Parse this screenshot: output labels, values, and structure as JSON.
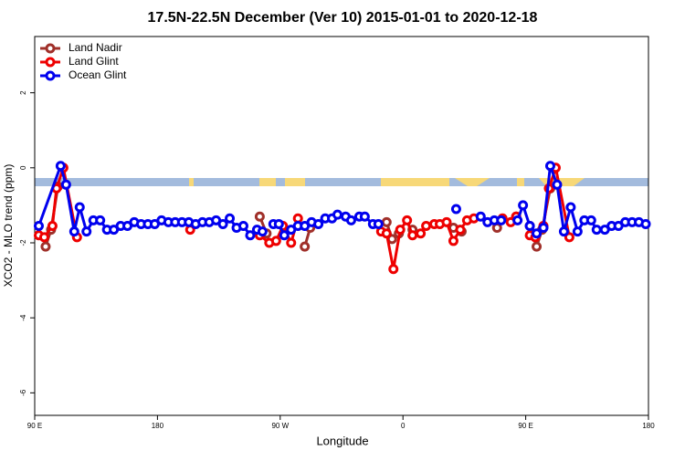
{
  "chart_data": {
    "type": "line",
    "title": "17.5N-22.5N December (Ver 10)   2015-01-01 to 2020-12-18",
    "xlabel": "Longitude",
    "ylabel": "XCO2 - MLO trend (ppm)",
    "xlim": [
      90,
      540
    ],
    "ylim": [
      -6.6,
      3.5
    ],
    "xticks": [
      {
        "value": 90,
        "label": "90 E"
      },
      180,
      {
        "value": 270,
        "label": "90 W"
      },
      {
        "value": 360,
        "label": "0"
      },
      {
        "value": 450,
        "label": "90 E"
      },
      {
        "value": 540,
        "label": "180"
      }
    ],
    "yticks": [
      -6,
      -4,
      -2,
      0,
      2
    ],
    "legend": "top-left",
    "series": [
      {
        "name": "Land Nadir",
        "color": "#a0302a",
        "x": [
          98,
          102,
          107,
          null,
          255,
          260,
          null,
          288,
          292,
          null,
          348,
          352,
          357,
          null,
          367,
          null,
          397,
          null,
          403,
          null,
          429,
          null,
          443,
          null,
          453,
          458,
          462,
          468
        ],
        "values": [
          -2.1,
          -1.65,
          -0.5,
          null,
          -1.3,
          -1.75,
          null,
          -2.1,
          -1.6,
          null,
          -1.45,
          -1.9,
          -1.75,
          null,
          -1.65,
          null,
          -1.6,
          null,
          -1.7,
          null,
          -1.6,
          null,
          -1.3,
          null,
          -1.55,
          -2.1,
          -1.65,
          -0.55
        ]
      },
      {
        "name": "Land Glint",
        "color": "#ee0000",
        "x": [
          93,
          97,
          103,
          106,
          111,
          121,
          null,
          204,
          null,
          255,
          262,
          267,
          272,
          278,
          283,
          null,
          344,
          348,
          353,
          358,
          363,
          367,
          373,
          377,
          383,
          387,
          392,
          397,
          402,
          407,
          412,
          null,
          433,
          439,
          443,
          null,
          453,
          457,
          463,
          467,
          472,
          482
        ],
        "values": [
          -1.8,
          -1.85,
          -1.55,
          -0.55,
          0.0,
          -1.85,
          null,
          -1.65,
          null,
          -1.8,
          -2.0,
          -1.95,
          -1.55,
          -2.0,
          -1.35,
          null,
          -1.7,
          -1.75,
          -2.7,
          -1.65,
          -1.4,
          -1.8,
          -1.75,
          -1.55,
          -1.5,
          -1.5,
          -1.45,
          -1.95,
          -1.65,
          -1.4,
          -1.35,
          null,
          -1.35,
          -1.45,
          -1.3,
          null,
          -1.8,
          -1.85,
          -1.55,
          -0.55,
          0.0,
          -1.85
        ]
      },
      {
        "name": "Ocean Glint",
        "color": "#0000ee",
        "x": [
          93,
          109,
          113,
          119,
          123,
          128,
          133,
          138,
          143,
          148,
          153,
          158,
          163,
          168,
          173,
          178,
          183,
          188,
          193,
          198,
          203,
          208,
          213,
          218,
          223,
          228,
          233,
          238,
          243,
          248,
          253,
          257,
          null,
          265,
          269,
          273,
          278,
          283,
          288,
          293,
          298,
          303,
          308,
          312,
          318,
          322,
          328,
          332,
          338,
          342,
          null,
          399,
          null,
          417,
          422,
          427,
          432,
          null,
          444,
          448,
          453,
          458,
          463,
          468,
          473,
          478,
          483,
          488,
          493,
          498,
          502,
          508,
          513,
          518,
          523,
          528,
          533,
          538
        ],
        "values": [
          -1.55,
          0.05,
          -0.45,
          -1.7,
          -1.05,
          -1.7,
          -1.4,
          -1.4,
          -1.65,
          -1.65,
          -1.55,
          -1.55,
          -1.45,
          -1.5,
          -1.5,
          -1.5,
          -1.4,
          -1.45,
          -1.45,
          -1.45,
          -1.45,
          -1.5,
          -1.45,
          -1.45,
          -1.4,
          -1.5,
          -1.35,
          -1.6,
          -1.55,
          -1.8,
          -1.65,
          -1.7,
          null,
          -1.5,
          -1.5,
          -1.8,
          -1.65,
          -1.55,
          -1.55,
          -1.45,
          -1.5,
          -1.35,
          -1.35,
          -1.25,
          -1.3,
          -1.4,
          -1.3,
          -1.3,
          -1.5,
          -1.5,
          null,
          -1.1,
          null,
          -1.3,
          -1.45,
          -1.4,
          -1.4,
          null,
          -1.4,
          -1.0,
          -1.55,
          -1.75,
          -1.6,
          0.05,
          -0.45,
          -1.7,
          -1.05,
          -1.7,
          -1.4,
          -1.4,
          -1.65,
          -1.65,
          -1.55,
          -1.55,
          -1.45,
          -1.45,
          -1.45,
          -1.5
        ]
      }
    ]
  }
}
